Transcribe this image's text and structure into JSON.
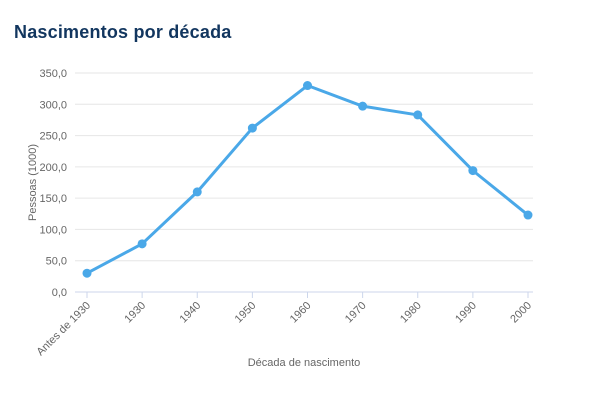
{
  "chart": {
    "title": "Nascimentos por década"
  },
  "chart_data": {
    "type": "line",
    "title": "Nascimentos por década",
    "xlabel": "Década de nascimento",
    "ylabel": "Pessoas (1000)",
    "categories": [
      "Antes de 1930",
      "1930",
      "1940",
      "1950",
      "1960",
      "1970",
      "1980",
      "1990",
      "2000"
    ],
    "values": [
      30,
      77,
      160,
      262,
      330,
      297,
      283,
      194,
      123
    ],
    "ylim": [
      0,
      350
    ],
    "y_tick_step": 50,
    "y_tick_labels": [
      "0,0",
      "50,0",
      "100,0",
      "150,0",
      "200,0",
      "250,0",
      "300,0",
      "350,0"
    ],
    "grid": true,
    "legend": "none",
    "colors": {
      "line": "#4aa8e8",
      "marker": "#4aa8e8",
      "grid": "#e6e6e6",
      "axis_line": "#ccd6eb",
      "tick_label": "#666666",
      "axis_title": "#666666",
      "chart_title": "#12365f",
      "background": "#ffffff"
    }
  }
}
